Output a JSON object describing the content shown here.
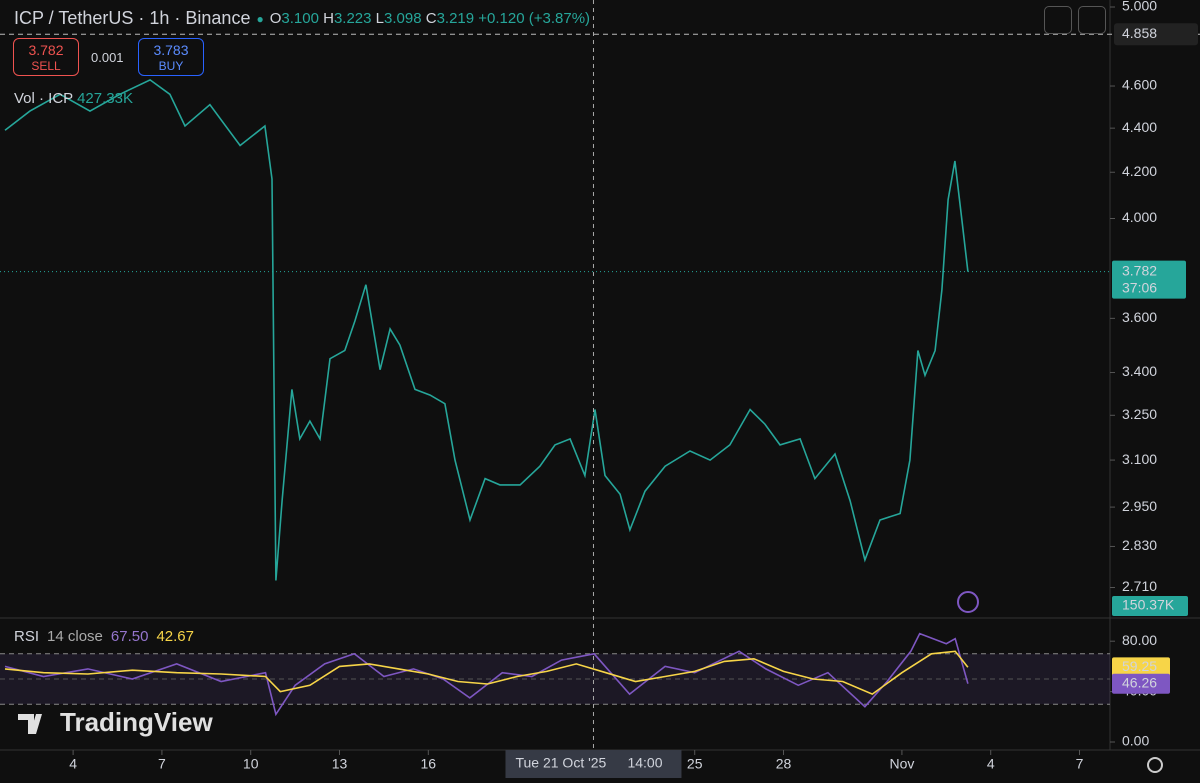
{
  "header": {
    "symbol": "ICP / TetherUS · 1h · Binance",
    "ohlc": [
      {
        "key": "O",
        "value": "3.100"
      },
      {
        "key": "H",
        "value": "3.223"
      },
      {
        "key": "L",
        "value": "3.098"
      },
      {
        "key": "C",
        "value": "3.219"
      }
    ],
    "change": "+0.120 (+3.87%)"
  },
  "trade": {
    "sell_price": "3.782",
    "sell": "SELL",
    "spread": "0.001",
    "buy_price": "3.783",
    "buy": "BUY"
  },
  "volume": {
    "label": "Vol · ICP",
    "value": "427.33K",
    "axis_label": "150.37K"
  },
  "crosshair": {
    "x": 21.58,
    "date": "Tue 21 Oct '25",
    "time": "14:00"
  },
  "brand": "TradingView",
  "chart_data": [
    {
      "type": "line",
      "log_scale": true,
      "color": "#26a69a",
      "x": [
        1.7,
        2.54,
        3.56,
        4.57,
        5.58,
        6.6,
        7.27,
        7.78,
        8.62,
        9.64,
        10.48,
        10.72,
        10.85,
        11.06,
        11.39,
        11.66,
        12.0,
        12.34,
        12.68,
        13.18,
        13.52,
        13.89,
        14.37,
        14.71,
        15.04,
        15.55,
        16.06,
        16.56,
        16.9,
        17.41,
        17.92,
        18.42,
        19.1,
        19.77,
        20.28,
        20.79,
        21.29,
        21.63,
        21.97,
        22.48,
        22.81,
        23.32,
        24.0,
        24.84,
        25.52,
        26.19,
        26.87,
        27.37,
        27.88,
        28.56,
        29.06,
        29.74,
        30.25,
        30.75,
        31.26,
        31.94,
        32.27,
        32.54,
        32.78,
        33.12,
        33.35,
        33.56,
        33.79,
        34.03,
        34.23
      ],
      "values": [
        4.39,
        4.48,
        4.56,
        4.48,
        4.56,
        4.63,
        4.56,
        4.41,
        4.51,
        4.32,
        4.41,
        4.17,
        2.73,
        2.97,
        3.34,
        3.17,
        3.23,
        3.17,
        3.45,
        3.48,
        3.59,
        3.73,
        3.41,
        3.56,
        3.5,
        3.34,
        3.32,
        3.29,
        3.1,
        2.91,
        3.04,
        3.02,
        3.02,
        3.08,
        3.15,
        3.17,
        3.05,
        3.27,
        3.05,
        2.99,
        2.88,
        3.0,
        3.08,
        3.13,
        3.1,
        3.15,
        3.27,
        3.22,
        3.15,
        3.17,
        3.04,
        3.12,
        2.97,
        2.79,
        2.91,
        2.93,
        3.1,
        3.48,
        3.39,
        3.48,
        3.71,
        4.08,
        4.25,
        3.99,
        3.782
      ],
      "last_price": 3.782,
      "countdown": "37:06",
      "high_line": 4.858,
      "xlim": [
        1.53,
        39.03
      ],
      "xticks": [
        4,
        7,
        10,
        13,
        16,
        25,
        28,
        {
          "value": 32,
          "label": "Nov"
        },
        {
          "value": 35,
          "label": "4"
        },
        {
          "value": 38,
          "label": "7"
        }
      ],
      "ylim": [
        2.627,
        5.037
      ],
      "yticks": [
        {
          "value": 2.71,
          "label": "2.710"
        },
        {
          "value": 2.83,
          "label": "2.830"
        },
        {
          "value": 2.95,
          "label": "2.950"
        },
        {
          "value": 3.1,
          "label": "3.100"
        },
        {
          "value": 3.25,
          "label": "3.250"
        },
        {
          "value": 3.4,
          "label": "3.400"
        },
        {
          "value": 3.6,
          "label": "3.600"
        },
        {
          "value": 4,
          "label": "4.000"
        },
        {
          "value": 4.2,
          "label": "4.200"
        },
        {
          "value": 4.4,
          "label": "4.400"
        },
        {
          "value": 4.6,
          "label": "4.600"
        },
        {
          "value": 5,
          "label": "5.000"
        }
      ]
    },
    {
      "type": "line",
      "title": "RSI",
      "subtitle": "14 close",
      "legend_values": [
        "67.50",
        "42.67"
      ],
      "series": [
        {
          "color": "#7e57c2",
          "x": [
            1.7,
            3,
            4.5,
            6,
            7.5,
            9,
            10.5,
            10.85,
            11.5,
            12.5,
            13.5,
            14.5,
            15.5,
            16.5,
            17.4,
            18.5,
            19.5,
            20.5,
            21.6,
            22.8,
            24,
            25,
            26.5,
            27.4,
            28.5,
            29.5,
            30.75,
            31.5,
            32.3,
            32.6,
            33.5,
            33.8,
            34.23
          ],
          "values": [
            60,
            52,
            58,
            50,
            62,
            48,
            55,
            22,
            45,
            62,
            70,
            52,
            58,
            50,
            35,
            55,
            52,
            65,
            70,
            38,
            60,
            55,
            72,
            58,
            45,
            55,
            28,
            48,
            72,
            86,
            78,
            82,
            46.26
          ]
        },
        {
          "color": "#f7d548",
          "x": [
            1.7,
            3,
            4.5,
            6,
            7.5,
            9,
            10.5,
            11,
            12,
            13,
            14,
            15,
            16,
            17,
            18,
            19,
            20,
            21,
            22,
            23,
            24,
            25,
            26,
            27,
            28,
            29,
            30,
            31,
            32,
            33,
            33.8,
            34.23
          ],
          "values": [
            58,
            55,
            54,
            57,
            55,
            54,
            52,
            40,
            45,
            60,
            62,
            58,
            54,
            48,
            46,
            52,
            56,
            62,
            55,
            48,
            52,
            56,
            64,
            66,
            56,
            50,
            48,
            38,
            55,
            70,
            72,
            59.25
          ]
        }
      ],
      "bands": [
        30,
        70
      ],
      "ylim": [
        0,
        100
      ],
      "yticks": [
        {
          "value": 0,
          "label": "0.00"
        },
        {
          "value": 40,
          "label": "40.00"
        },
        {
          "value": 80,
          "label": "80.00"
        }
      ]
    }
  ]
}
